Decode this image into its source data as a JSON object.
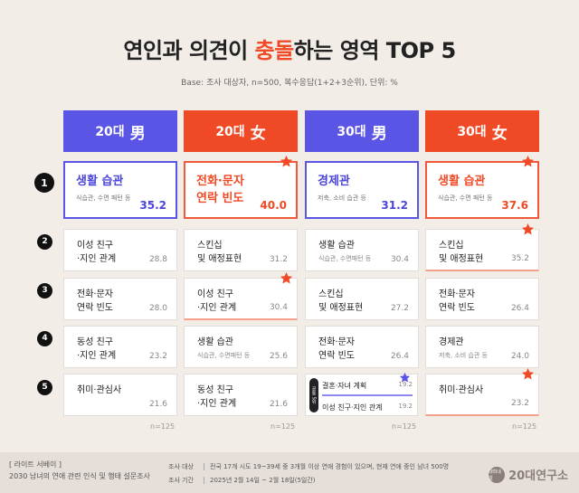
{
  "title": {
    "pre": "연인과 의견이 ",
    "hl1": "충",
    "hl2": "돌",
    "post": "하는 영역 TOP 5"
  },
  "base_note": "Base: 조사 대상자, n=500, 복수응답(1+2+3순위), 단위: %",
  "columns": [
    {
      "age": "20대",
      "gender": "男",
      "color": "#5b55e6"
    },
    {
      "age": "20대",
      "gender": "女",
      "color": "#ef4a25"
    },
    {
      "age": "30대",
      "gender": "男",
      "color": "#5b55e6"
    },
    {
      "age": "30대",
      "gender": "女",
      "color": "#ef4a25"
    }
  ],
  "ranks": [
    "1",
    "2",
    "3",
    "4",
    "5"
  ],
  "chart_data": {
    "type": "table",
    "title": "연인과 의견이 충돌하는 영역 TOP 5",
    "columns": [
      "20대 男",
      "20대 女",
      "30대 男",
      "30대 女"
    ],
    "rows": [
      [
        {
          "name": "생활 습관",
          "sub": "식습관, 수면 패턴 등",
          "value": "35.2"
        },
        {
          "name": "전화·문자\n연락 빈도",
          "sub": "",
          "value": "40.0",
          "star": true
        },
        {
          "name": "경제관",
          "sub": "저축, 소비 습관 등",
          "value": "31.2"
        },
        {
          "name": "생활 습관",
          "sub": "식습관, 수면 패턴 등",
          "value": "37.6",
          "star": true
        }
      ],
      [
        {
          "name": "이성 친구\n·지인 관계",
          "sub": "",
          "value": "28.8"
        },
        {
          "name": "스킨십\n및 애정표현",
          "sub": "",
          "value": "31.2"
        },
        {
          "name": "생활 습관",
          "sub": "식습관, 수면패턴 등",
          "value": "30.4"
        },
        {
          "name": "스킨십\n및 애정표현",
          "sub": "",
          "value": "35.2",
          "star": true
        }
      ],
      [
        {
          "name": "전화·문자\n연락 빈도",
          "sub": "",
          "value": "28.0"
        },
        {
          "name": "이성 친구\n·지인 관계",
          "sub": "",
          "value": "30.4",
          "star": true
        },
        {
          "name": "스킨십\n및 애정표현",
          "sub": "",
          "value": "27.2"
        },
        {
          "name": "전화·문자\n연락 빈도",
          "sub": "",
          "value": "26.4"
        }
      ],
      [
        {
          "name": "동성 친구\n·지인 관계",
          "sub": "",
          "value": "23.2"
        },
        {
          "name": "생활 습관",
          "sub": "식습관, 수면패턴 등",
          "value": "25.6"
        },
        {
          "name": "전화·문자\n연락 빈도",
          "sub": "",
          "value": "26.4"
        },
        {
          "name": "경제관",
          "sub": "저축, 소비 습관 등",
          "value": "24.0"
        }
      ],
      [
        {
          "name": "취미·관심사",
          "sub": "",
          "value": "21.6"
        },
        {
          "name": "동성 친구\n·지인 관계",
          "sub": "",
          "value": "21.6"
        },
        {
          "split": true,
          "badge": "공동 5위",
          "items": [
            {
              "name": "결혼·자녀 계획",
              "value": "19.2",
              "star": true
            },
            {
              "name": "이성 친구·지인 관계",
              "value": "19.2"
            }
          ]
        },
        {
          "name": "취미·관심사",
          "sub": "",
          "value": "23.2",
          "star": true
        }
      ]
    ],
    "n": [
      "n=125",
      "n=125",
      "n=125",
      "n=125"
    ]
  },
  "footer": {
    "line1": "[ 라이트 서베이 ]",
    "line2": "2030 남녀의 연애 관련 인식 및 행태 설문조사",
    "label_target": "조사 대상",
    "text_target": "전국 17개 시도 19~39세 중 3개월 이상 연애 경험이 있으며, 현재 연애 중인 남녀 500명",
    "label_period": "조사 기간",
    "text_period": "2025년 2월 14일 ~ 2월 18일(5일간)",
    "brand_mark": "대학내일",
    "brand": "20대연구소"
  },
  "colors": {
    "blue": "#5b55e6",
    "orange": "#ef4a25",
    "star_orange": "#ef4a25",
    "star_blue": "#5b55e6",
    "background": "#f3ede8"
  }
}
